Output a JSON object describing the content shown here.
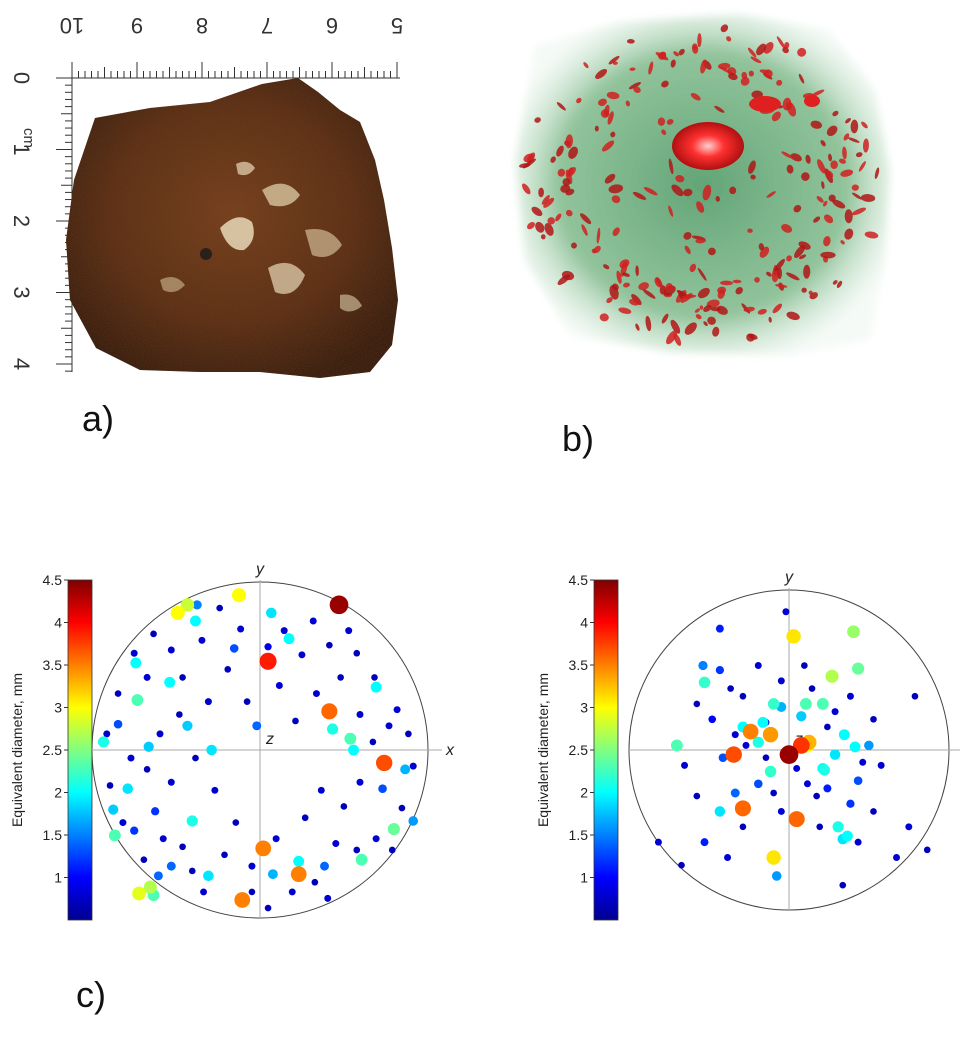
{
  "panels": {
    "a": {
      "label": "a)",
      "ruler_unit": "cm",
      "ruler_top_numbers": [
        "10",
        "9",
        "8",
        "7",
        "6",
        "5"
      ],
      "ruler_left_numbers": [
        "0",
        "1",
        "2",
        "3",
        "4"
      ]
    },
    "b": {
      "label": "b)"
    },
    "c": {
      "label": "c)",
      "colorbar_title": "Equivalent diameter, mm",
      "colorbar_ticks": [
        "4.5",
        "4",
        "3.5",
        "3",
        "2.5",
        "2",
        "1.5",
        "1"
      ],
      "axis_x": "x",
      "axis_y": "y",
      "axis_z": "z"
    }
  },
  "colors": {
    "rock_dark": "#3a1a0c",
    "rock_mid": "#6b3518",
    "rock_light": "#e8d8b8",
    "ct_green": "#7fb98a",
    "ct_red": "#c01818",
    "jet": [
      "#00008f",
      "#0000ff",
      "#0080ff",
      "#00ffff",
      "#80ff80",
      "#ffff00",
      "#ff8000",
      "#ff0000",
      "#800000"
    ]
  },
  "chart_data": [
    {
      "type": "scatter",
      "xlabel": "x",
      "ylabel": "y",
      "colorbar_label": "Equivalent diameter, mm",
      "colorbar_range": [
        0.5,
        4.5
      ],
      "xlim": [
        -1,
        1
      ],
      "ylim": [
        -1,
        1
      ],
      "points": [
        [
          0.49,
          0.9,
          4.4
        ],
        [
          0.05,
          0.55,
          3.9
        ],
        [
          0.43,
          0.24,
          3.6
        ],
        [
          0.77,
          -0.08,
          3.7
        ],
        [
          0.02,
          -0.61,
          3.5
        ],
        [
          0.24,
          -0.77,
          3.5
        ],
        [
          -0.11,
          -0.93,
          3.5
        ],
        [
          -0.9,
          -0.53,
          2.3
        ],
        [
          -0.68,
          -0.85,
          2.7
        ],
        [
          -0.75,
          -0.89,
          2.9
        ],
        [
          -0.66,
          -0.9,
          2.3
        ],
        [
          -0.13,
          0.96,
          3.0
        ],
        [
          -0.45,
          0.9,
          2.8
        ],
        [
          -0.51,
          0.85,
          3.0
        ],
        [
          0.45,
          0.13,
          2.1
        ],
        [
          0.56,
          0.07,
          2.3
        ],
        [
          0.58,
          0.0,
          2.0
        ],
        [
          0.72,
          0.39,
          2.0
        ],
        [
          0.83,
          -0.49,
          2.4
        ],
        [
          0.63,
          -0.68,
          2.3
        ],
        [
          0.24,
          -0.69,
          2.0
        ],
        [
          -0.97,
          0.05,
          2.1
        ],
        [
          -0.77,
          0.54,
          2.0
        ],
        [
          -0.76,
          0.31,
          2.3
        ],
        [
          -0.56,
          0.42,
          2.0
        ],
        [
          -0.42,
          -0.44,
          2.1
        ],
        [
          -0.4,
          0.8,
          2.0
        ],
        [
          0.18,
          0.69,
          2.0
        ],
        [
          0.07,
          0.85,
          1.9
        ],
        [
          -0.3,
          0.0,
          1.9
        ],
        [
          -0.69,
          0.02,
          1.8
        ],
        [
          -0.82,
          -0.24,
          1.9
        ],
        [
          -0.45,
          0.15,
          1.8
        ],
        [
          -0.91,
          -0.37,
          1.8
        ],
        [
          -0.32,
          -0.78,
          1.9
        ],
        [
          0.08,
          -0.77,
          1.7
        ],
        [
          0.9,
          -0.12,
          1.7
        ],
        [
          0.95,
          -0.44,
          1.6
        ],
        [
          -0.55,
          -0.72,
          1.4
        ],
        [
          -0.63,
          -0.78,
          1.4
        ],
        [
          0.4,
          -0.72,
          1.4
        ],
        [
          -0.78,
          -0.5,
          1.2
        ],
        [
          -0.02,
          0.15,
          1.4
        ],
        [
          -0.39,
          0.9,
          1.5
        ],
        [
          -0.16,
          0.63,
          1.3
        ],
        [
          -0.88,
          0.16,
          1.3
        ],
        [
          0.76,
          -0.24,
          1.3
        ],
        [
          -0.65,
          -0.38,
          1.2
        ],
        [
          0.05,
          0.64,
          0.9
        ],
        [
          0.15,
          0.74,
          0.8
        ],
        [
          0.26,
          0.59,
          0.8
        ],
        [
          0.33,
          0.8,
          0.8
        ],
        [
          0.43,
          0.65,
          0.7
        ],
        [
          0.55,
          0.74,
          0.8
        ],
        [
          0.71,
          0.45,
          0.7
        ],
        [
          0.85,
          0.25,
          0.8
        ],
        [
          0.92,
          0.1,
          0.7
        ],
        [
          0.95,
          -0.1,
          0.8
        ],
        [
          0.88,
          -0.36,
          0.7
        ],
        [
          0.72,
          -0.55,
          0.8
        ],
        [
          0.6,
          -0.62,
          0.7
        ],
        [
          0.47,
          -0.58,
          0.8
        ],
        [
          0.34,
          -0.82,
          0.7
        ],
        [
          0.2,
          -0.88,
          0.8
        ],
        [
          0.05,
          -0.98,
          0.7
        ],
        [
          -0.05,
          -0.72,
          0.8
        ],
        [
          -0.22,
          -0.65,
          0.7
        ],
        [
          -0.35,
          -0.88,
          0.8
        ],
        [
          -0.48,
          -0.6,
          0.7
        ],
        [
          -0.6,
          -0.55,
          0.8
        ],
        [
          -0.72,
          -0.68,
          0.7
        ],
        [
          -0.85,
          -0.45,
          0.8
        ],
        [
          -0.93,
          -0.22,
          0.7
        ],
        [
          -0.95,
          0.1,
          0.8
        ],
        [
          -0.88,
          0.35,
          0.7
        ],
        [
          -0.78,
          0.6,
          0.8
        ],
        [
          -0.66,
          0.72,
          0.7
        ],
        [
          -0.55,
          0.62,
          0.8
        ],
        [
          -0.48,
          0.45,
          0.7
        ],
        [
          -0.36,
          0.68,
          0.8
        ],
        [
          -0.25,
          0.88,
          0.7
        ],
        [
          -0.12,
          0.75,
          0.8
        ],
        [
          -0.2,
          0.5,
          0.7
        ],
        [
          -0.32,
          0.3,
          0.8
        ],
        [
          -0.5,
          0.22,
          0.7
        ],
        [
          -0.62,
          0.1,
          0.8
        ],
        [
          -0.7,
          -0.12,
          0.7
        ],
        [
          -0.55,
          -0.2,
          0.8
        ],
        [
          -0.4,
          -0.05,
          0.7
        ],
        [
          -0.28,
          -0.25,
          0.8
        ],
        [
          -0.15,
          -0.45,
          0.7
        ],
        [
          0.1,
          -0.55,
          0.8
        ],
        [
          0.28,
          -0.42,
          0.7
        ],
        [
          0.38,
          -0.25,
          0.8
        ],
        [
          0.52,
          -0.35,
          0.7
        ],
        [
          0.62,
          -0.2,
          0.8
        ],
        [
          0.7,
          0.05,
          0.7
        ],
        [
          0.62,
          0.22,
          0.8
        ],
        [
          0.5,
          0.45,
          0.7
        ],
        [
          0.35,
          0.35,
          0.8
        ],
        [
          0.22,
          0.18,
          0.7
        ],
        [
          0.12,
          0.4,
          0.8
        ],
        [
          -0.08,
          0.3,
          0.7
        ],
        [
          0.8,
          0.15,
          0.8
        ],
        [
          0.82,
          -0.62,
          0.7
        ],
        [
          -0.8,
          -0.05,
          0.8
        ],
        [
          -0.05,
          -0.88,
          0.7
        ],
        [
          0.42,
          -0.92,
          0.8
        ],
        [
          -0.42,
          -0.75,
          0.7
        ],
        [
          -0.7,
          0.45,
          0.8
        ],
        [
          0.6,
          0.6,
          0.7
        ]
      ]
    },
    {
      "type": "scatter",
      "xlabel": "x",
      "ylabel": "y",
      "colorbar_label": "Equivalent diameter, mm",
      "colorbar_range": [
        0.5,
        4.5
      ],
      "xlim": [
        -1,
        1
      ],
      "ylim": [
        -1,
        1
      ],
      "points": [
        [
          0.0,
          -0.03,
          4.4
        ],
        [
          0.08,
          0.03,
          3.8
        ],
        [
          -0.36,
          -0.03,
          3.7
        ],
        [
          -0.3,
          -0.38,
          3.6
        ],
        [
          0.05,
          -0.45,
          3.6
        ],
        [
          -0.25,
          0.12,
          3.5
        ],
        [
          0.13,
          0.05,
          3.3
        ],
        [
          -0.12,
          0.1,
          3.4
        ],
        [
          0.03,
          0.74,
          3.1
        ],
        [
          0.12,
          0.03,
          3.0
        ],
        [
          -0.1,
          -0.7,
          3.1
        ],
        [
          0.28,
          0.48,
          2.7
        ],
        [
          0.42,
          0.77,
          2.6
        ],
        [
          0.45,
          0.53,
          2.4
        ],
        [
          -0.73,
          0.03,
          2.3
        ],
        [
          -0.55,
          0.44,
          2.2
        ],
        [
          0.22,
          0.3,
          2.3
        ],
        [
          0.11,
          0.3,
          2.3
        ],
        [
          -0.1,
          0.3,
          2.2
        ],
        [
          -0.2,
          0.05,
          2.1
        ],
        [
          -0.3,
          0.15,
          2.0
        ],
        [
          0.3,
          -0.03,
          1.9
        ],
        [
          0.36,
          0.1,
          2.0
        ],
        [
          0.43,
          0.02,
          2.0
        ],
        [
          0.23,
          -0.13,
          2.1
        ],
        [
          -0.12,
          -0.14,
          2.2
        ],
        [
          0.22,
          -0.12,
          2.0
        ],
        [
          0.32,
          -0.5,
          2.1
        ],
        [
          -0.45,
          -0.4,
          1.9
        ],
        [
          0.35,
          -0.58,
          1.9
        ],
        [
          0.08,
          0.22,
          1.8
        ],
        [
          -0.05,
          0.28,
          1.7
        ],
        [
          0.38,
          -0.56,
          2.0
        ],
        [
          -0.17,
          0.18,
          2.0
        ],
        [
          0.52,
          0.03,
          1.6
        ],
        [
          -0.56,
          0.55,
          1.5
        ],
        [
          -0.08,
          -0.82,
          1.6
        ],
        [
          -0.43,
          -0.05,
          1.3
        ],
        [
          -0.35,
          -0.28,
          1.4
        ],
        [
          -0.2,
          -0.22,
          1.3
        ],
        [
          -0.45,
          0.52,
          1.2
        ],
        [
          -0.55,
          -0.6,
          1.1
        ],
        [
          -0.45,
          0.79,
          1.1
        ],
        [
          0.4,
          -0.35,
          1.2
        ],
        [
          0.45,
          -0.2,
          1.3
        ],
        [
          -0.5,
          0.2,
          1.0
        ],
        [
          0.25,
          -0.25,
          1.1
        ],
        [
          -0.35,
          0.1,
          0.8
        ],
        [
          -0.28,
          0.03,
          0.8
        ],
        [
          -0.15,
          -0.05,
          0.7
        ],
        [
          0.05,
          -0.12,
          0.8
        ],
        [
          0.18,
          -0.3,
          0.7
        ],
        [
          0.3,
          0.25,
          0.8
        ],
        [
          0.15,
          0.4,
          0.7
        ],
        [
          -0.05,
          0.45,
          0.8
        ],
        [
          -0.3,
          0.35,
          0.7
        ],
        [
          -0.2,
          0.55,
          0.8
        ],
        [
          0.1,
          0.55,
          0.7
        ],
        [
          0.4,
          0.35,
          0.8
        ],
        [
          0.55,
          0.2,
          0.7
        ],
        [
          0.6,
          -0.1,
          0.8
        ],
        [
          0.55,
          -0.4,
          0.7
        ],
        [
          0.45,
          -0.6,
          0.8
        ],
        [
          0.2,
          -0.5,
          0.7
        ],
        [
          -0.05,
          -0.4,
          0.8
        ],
        [
          -0.3,
          -0.5,
          0.7
        ],
        [
          -0.4,
          -0.7,
          0.8
        ],
        [
          -0.6,
          -0.3,
          0.7
        ],
        [
          -0.68,
          -0.1,
          0.8
        ],
        [
          -0.6,
          0.3,
          0.7
        ],
        [
          -0.02,
          0.9,
          0.8
        ],
        [
          0.82,
          0.35,
          0.7
        ],
        [
          0.78,
          -0.5,
          0.8
        ],
        [
          0.9,
          -0.65,
          0.7
        ],
        [
          -0.85,
          -0.6,
          0.8
        ],
        [
          -0.7,
          -0.75,
          0.7
        ],
        [
          0.7,
          -0.7,
          0.8
        ],
        [
          0.35,
          -0.88,
          0.7
        ],
        [
          -0.15,
          0.18,
          0.8
        ],
        [
          0.25,
          0.15,
          0.7
        ],
        [
          0.48,
          -0.08,
          0.8
        ],
        [
          -0.1,
          -0.28,
          0.7
        ],
        [
          0.12,
          -0.22,
          0.8
        ],
        [
          -0.38,
          0.4,
          0.7
        ]
      ]
    }
  ]
}
